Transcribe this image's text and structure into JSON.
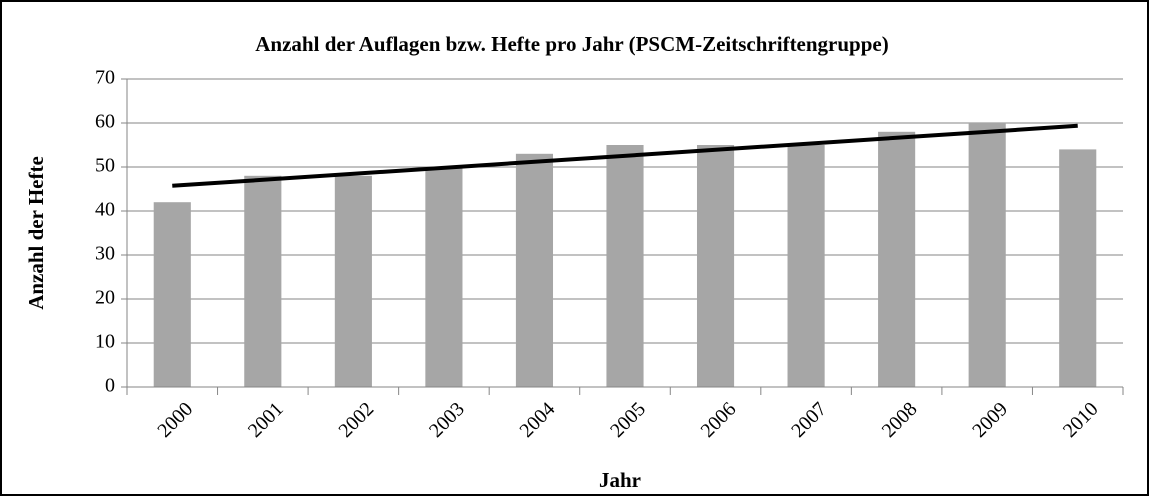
{
  "chart_data": {
    "type": "bar",
    "title": "Anzahl der Auflagen bzw. Hefte pro Jahr (PSCM-Zeitschriftengruppe)",
    "x_label": "Jahr",
    "y_label": "Anzahl der Hefte",
    "categories": [
      "2000",
      "2001",
      "2002",
      "2003",
      "2004",
      "2005",
      "2006",
      "2007",
      "2008",
      "2009",
      "2010"
    ],
    "values": [
      42,
      48,
      48,
      50,
      53,
      55,
      55,
      55,
      58,
      60,
      54
    ],
    "color": "#a6a6a6",
    "trendline": "linear",
    "trendline_color": "#000000",
    "ylim": [
      0,
      70
    ],
    "yticks": [
      0,
      10,
      20,
      30,
      40,
      50,
      60,
      70
    ],
    "grid": true
  }
}
